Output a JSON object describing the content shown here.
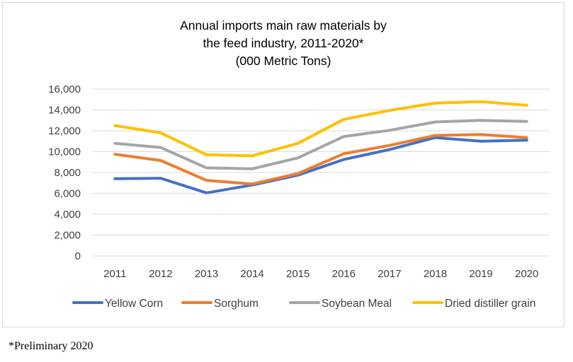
{
  "chart_data": {
    "type": "line",
    "title_lines": [
      "Annual imports main raw materials by",
      "the feed industry, 2011-2020*",
      "(000 Metric Tons)"
    ],
    "x": [
      "2011",
      "2012",
      "2013",
      "2014",
      "2015",
      "2016",
      "2017",
      "2018",
      "2019",
      "2020"
    ],
    "y_ticks": [
      "0",
      "2,000",
      "4,000",
      "6,000",
      "8,000",
      "10,000",
      "12,000",
      "14,000",
      "16,000"
    ],
    "ylim": [
      0,
      16000
    ],
    "grid": true,
    "legend_position": "bottom",
    "series": [
      {
        "name": "Yellow Corn",
        "color": "#4472c4",
        "values": [
          7400,
          7450,
          6050,
          6800,
          7750,
          9250,
          10200,
          11350,
          11000,
          11100
        ]
      },
      {
        "name": "Sorghum",
        "color": "#ed7d31",
        "values": [
          9750,
          9150,
          7250,
          6900,
          7900,
          9800,
          10600,
          11550,
          11650,
          11350
        ]
      },
      {
        "name": "Soybean Meal",
        "color": "#a5a5a5",
        "values": [
          10800,
          10400,
          8450,
          8350,
          9400,
          11450,
          12050,
          12850,
          13000,
          12900
        ]
      },
      {
        "name": "Dried distiller grain",
        "color": "#ffc000",
        "values": [
          12500,
          11800,
          9700,
          9600,
          10800,
          13100,
          13950,
          14650,
          14800,
          14450
        ]
      }
    ]
  },
  "footnote": "*Preliminary 2020"
}
